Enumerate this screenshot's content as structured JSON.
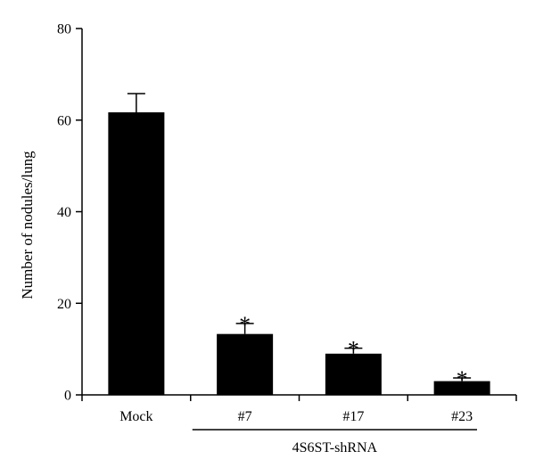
{
  "chart_data": {
    "type": "bar",
    "title": "",
    "xlabel": "",
    "ylabel": "Number of nodules/lung",
    "ylim": [
      0,
      80
    ],
    "yticks": [
      0,
      20,
      40,
      60,
      80
    ],
    "grid": false,
    "categories": [
      "Mock",
      "#7",
      "#17",
      "#23"
    ],
    "values": [
      61.7,
      13.3,
      9.0,
      3.0
    ],
    "error_upper": [
      4.1,
      2.3,
      1.2,
      0.7
    ],
    "significance": [
      "",
      "*",
      "*",
      "*"
    ],
    "group_label": "4S6ST-shRNA",
    "group_members": [
      "#7",
      "#17",
      "#23"
    ],
    "bar_color": "#000000"
  }
}
